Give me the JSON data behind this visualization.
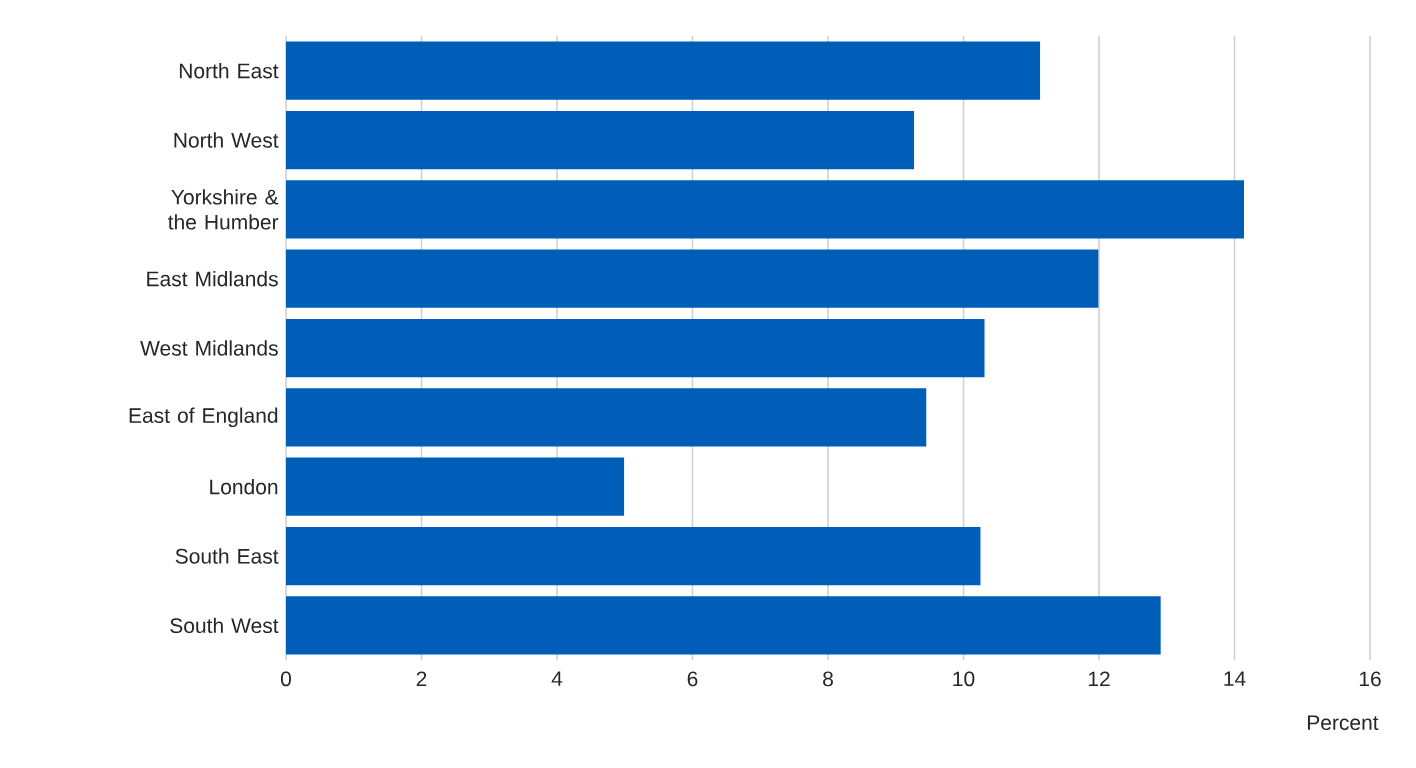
{
  "chart_data": {
    "type": "bar",
    "orientation": "horizontal",
    "categories": [
      "North East",
      "North West",
      "Yorkshire & the Humber",
      "East Midlands",
      "West Midlands",
      "East of England",
      "London",
      "South East",
      "South West"
    ],
    "values": [
      11.13,
      9.27,
      14.14,
      11.99,
      10.31,
      9.45,
      4.99,
      10.25,
      12.91
    ],
    "color": "#005eb8",
    "xlabel": "Percent",
    "xlim": [
      0,
      16
    ],
    "xticks": [
      0,
      2,
      4,
      6,
      8,
      10,
      12,
      14,
      16
    ],
    "grid": "x"
  }
}
